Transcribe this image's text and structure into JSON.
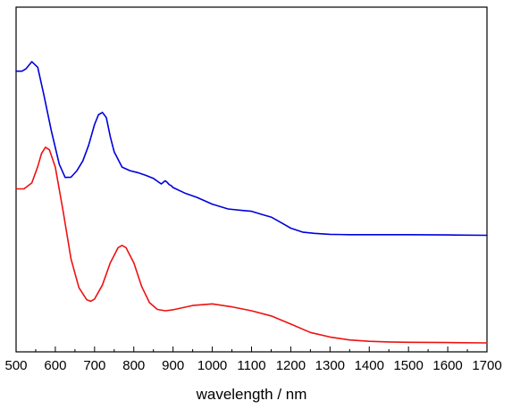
{
  "chart_data": {
    "type": "line",
    "title": "",
    "xlabel": "wavelength / nm",
    "ylabel": "",
    "xlim": [
      500,
      1700
    ],
    "ylim": [
      0,
      1
    ],
    "grid": false,
    "legend": "none",
    "x_ticks": [
      "500",
      "600",
      "700",
      "800",
      "900",
      "1000",
      "1100",
      "1200",
      "1300",
      "1400",
      "1500",
      "1600",
      "1700"
    ],
    "series": [
      {
        "color": "#0000dd",
        "x": [
          500,
          515,
          525,
          540,
          555,
          570,
          590,
          610,
          625,
          640,
          655,
          670,
          685,
          700,
          710,
          720,
          730,
          740,
          750,
          770,
          790,
          810,
          830,
          850,
          870,
          880,
          885,
          890,
          895,
          900,
          930,
          960,
          1000,
          1040,
          1080,
          1100,
          1130,
          1150,
          1170,
          1200,
          1230,
          1260,
          1300,
          1350,
          1400,
          1500,
          1600,
          1700
        ],
        "y": [
          0.858,
          0.858,
          0.865,
          0.887,
          0.87,
          0.79,
          0.674,
          0.572,
          0.531,
          0.532,
          0.552,
          0.582,
          0.63,
          0.694,
          0.724,
          0.731,
          0.715,
          0.657,
          0.61,
          0.563,
          0.552,
          0.546,
          0.538,
          0.528,
          0.511,
          0.521,
          0.516,
          0.509,
          0.506,
          0.5,
          0.483,
          0.47,
          0.449,
          0.434,
          0.429,
          0.427,
          0.416,
          0.409,
          0.396,
          0.375,
          0.363,
          0.359,
          0.356,
          0.355,
          0.355,
          0.355,
          0.354,
          0.353
        ]
      },
      {
        "color": "#ee1111",
        "x": [
          500,
          520,
          540,
          555,
          565,
          575,
          585,
          600,
          620,
          640,
          660,
          680,
          690,
          700,
          720,
          740,
          760,
          770,
          780,
          800,
          820,
          840,
          860,
          880,
          900,
          950,
          1000,
          1050,
          1100,
          1150,
          1200,
          1250,
          1300,
          1350,
          1400,
          1450,
          1500,
          1600,
          1700
        ],
        "y": [
          0.496,
          0.496,
          0.514,
          0.564,
          0.605,
          0.624,
          0.616,
          0.563,
          0.426,
          0.28,
          0.192,
          0.155,
          0.15,
          0.157,
          0.2,
          0.268,
          0.315,
          0.322,
          0.315,
          0.268,
          0.196,
          0.146,
          0.125,
          0.121,
          0.124,
          0.137,
          0.142,
          0.133,
          0.121,
          0.105,
          0.08,
          0.054,
          0.04,
          0.031,
          0.027,
          0.025,
          0.024,
          0.023,
          0.022
        ]
      }
    ]
  }
}
